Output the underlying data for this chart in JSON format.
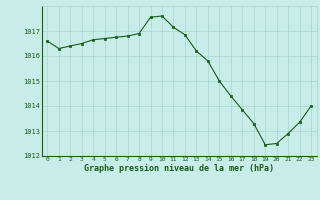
{
  "hours": [
    0,
    1,
    2,
    3,
    4,
    5,
    6,
    7,
    8,
    9,
    10,
    11,
    12,
    13,
    14,
    15,
    16,
    17,
    18,
    19,
    20,
    21,
    22,
    23
  ],
  "pressure": [
    1016.6,
    1016.3,
    1016.4,
    1016.5,
    1016.65,
    1016.7,
    1016.75,
    1016.8,
    1016.9,
    1017.55,
    1017.6,
    1017.15,
    1016.85,
    1016.2,
    1015.8,
    1015.0,
    1014.4,
    1013.85,
    1013.3,
    1012.45,
    1012.5,
    1012.9,
    1013.35,
    1014.0
  ],
  "ylim": [
    1012,
    1018.0
  ],
  "yticks": [
    1012,
    1013,
    1014,
    1015,
    1016,
    1017
  ],
  "xticks": [
    0,
    1,
    2,
    3,
    4,
    5,
    6,
    7,
    8,
    9,
    10,
    11,
    12,
    13,
    14,
    15,
    16,
    17,
    18,
    19,
    20,
    21,
    22,
    23
  ],
  "xlabel": "Graphe pression niveau de la mer (hPa)",
  "line_color": "#1a5c1a",
  "marker_color": "#1a5c1a",
  "bg_color": "#c8ece8",
  "grid_color": "#a8d4d0",
  "xlabel_color": "#1a5c1a",
  "tick_color": "#1a5c1a"
}
